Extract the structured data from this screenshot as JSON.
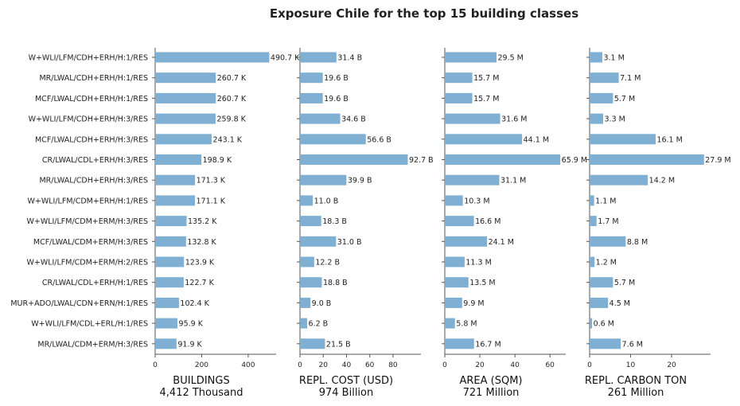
{
  "chart_data": {
    "type": "bar",
    "orientation": "horizontal",
    "title": "Exposure Chile for the top 15 building classes",
    "bar_color": "#7fb0d3",
    "categories": [
      "W+WLI/LFM/CDH+ERH/H:1/RES",
      "MR/LWAL/CDH+ERH/H:1/RES",
      "MCF/LWAL/CDH+ERH/H:1/RES",
      "W+WLI/LFM/CDH+ERH/H:3/RES",
      "MCF/LWAL/CDH+ERH/H:3/RES",
      "CR/LWAL/CDL+ERH/H:3/RES",
      "MR/LWAL/CDH+ERH/H:3/RES",
      "W+WLI/LFM/CDM+ERH/H:1/RES",
      "W+WLI/LFM/CDM+ERM/H:3/RES",
      "MCF/LWAL/CDM+ERM/H:3/RES",
      "W+WLI/LFM/CDM+ERM/H:2/RES",
      "CR/LWAL/CDL+ERH/H:1/RES",
      "MUR+ADO/LWAL/CDN+ERN/H:1/RES",
      "W+WLI/LFM/CDL+ERL/H:1/RES",
      "MR/LWAL/CDM+ERM/H:3/RES"
    ],
    "panels": [
      {
        "xlabel": "BUILDINGS",
        "subtitle": "4,412 Thousand",
        "xlim": [
          0,
          520
        ],
        "ticks": [
          0,
          200,
          400
        ],
        "values": [
          490.7,
          260.7,
          260.7,
          259.8,
          243.1,
          198.9,
          171.3,
          171.1,
          135.2,
          132.8,
          123.9,
          122.7,
          102.4,
          95.9,
          91.9
        ],
        "labels": [
          "490.7 K",
          "260.7 K",
          "260.7 K",
          "259.8 K",
          "243.1 K",
          "198.9 K",
          "171.3 K",
          "171.1 K",
          "135.2 K",
          "132.8 K",
          "123.9 K",
          "122.7 K",
          "102.4 K",
          "95.9 K",
          "91.9 K"
        ]
      },
      {
        "xlabel": "REPL. COST (USD)",
        "subtitle": "974 Billion",
        "xlim": [
          0,
          104
        ],
        "ticks": [
          0,
          20,
          40,
          60,
          80
        ],
        "values": [
          31.4,
          19.6,
          19.6,
          34.6,
          56.6,
          92.7,
          39.9,
          11.0,
          18.3,
          31.0,
          12.2,
          18.8,
          9.0,
          6.2,
          21.5
        ],
        "labels": [
          "31.4 B",
          "19.6 B",
          "19.6 B",
          "34.6 B",
          "56.6 B",
          "92.7 B",
          "39.9 B",
          "11.0 B",
          "18.3 B",
          "31.0 B",
          "12.2 B",
          "18.8 B",
          "9.0 B",
          "6.2 B",
          "21.5 B"
        ]
      },
      {
        "xlabel": "AREA (SQM)",
        "subtitle": "721 Million",
        "xlim": [
          0,
          69
        ],
        "ticks": [
          0,
          20,
          40,
          60
        ],
        "values": [
          29.5,
          15.7,
          15.7,
          31.6,
          44.1,
          65.9,
          31.1,
          10.3,
          16.6,
          24.1,
          11.3,
          13.5,
          9.9,
          5.8,
          16.7
        ],
        "labels": [
          "29.5 M",
          "15.7 M",
          "15.7 M",
          "31.6 M",
          "44.1 M",
          "65.9 M",
          "31.1 M",
          "10.3 M",
          "16.6 M",
          "24.1 M",
          "11.3 M",
          "13.5 M",
          "9.9 M",
          "5.8 M",
          "16.7 M"
        ]
      },
      {
        "xlabel": "REPL. CARBON TON",
        "subtitle": "261 Million",
        "xlim": [
          0,
          29.5
        ],
        "ticks": [
          0,
          10,
          20
        ],
        "values": [
          3.1,
          7.1,
          5.7,
          3.3,
          16.1,
          27.9,
          14.2,
          1.1,
          1.7,
          8.8,
          1.2,
          5.7,
          4.5,
          0.6,
          7.6
        ],
        "labels": [
          "3.1 M",
          "7.1 M",
          "5.7 M",
          "3.3 M",
          "16.1 M",
          "27.9 M",
          "14.2 M",
          "1.1 M",
          "1.7 M",
          "8.8 M",
          "1.2 M",
          "5.7 M",
          "4.5 M",
          "0.6 M",
          "7.6 M"
        ]
      }
    ]
  }
}
